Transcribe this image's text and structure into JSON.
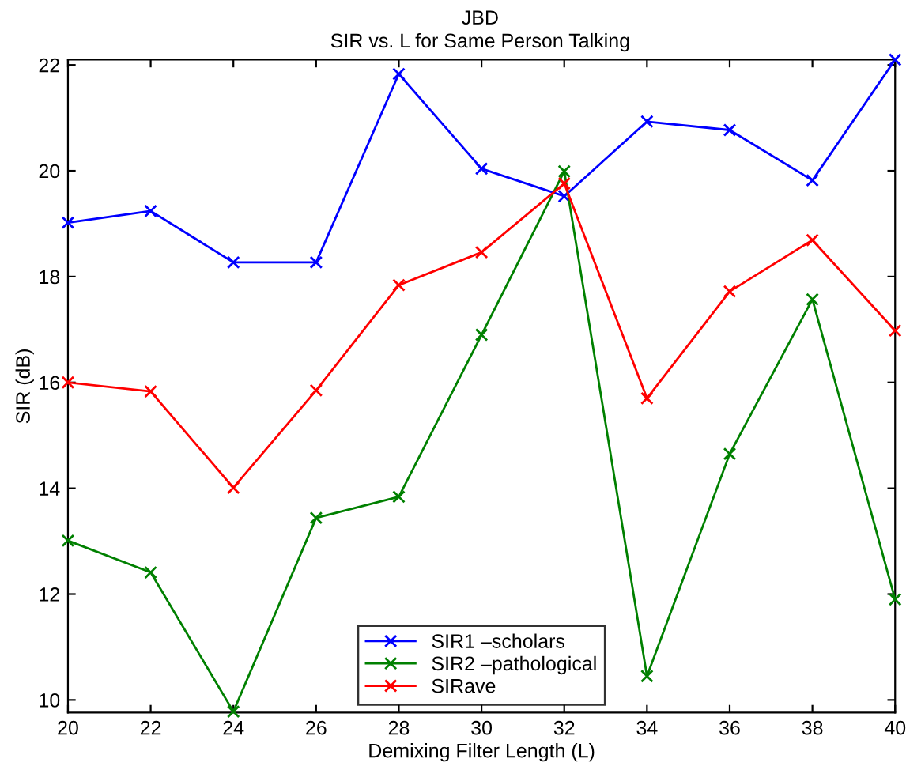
{
  "chart_data": {
    "type": "line",
    "title": "JBD",
    "subtitle": "SIR vs. L for Same Person Talking",
    "xlabel": "Demixing Filter Length (L)",
    "ylabel": "SIR (dB)",
    "x": [
      20,
      22,
      24,
      26,
      28,
      30,
      32,
      34,
      36,
      38,
      40
    ],
    "series": [
      {
        "name": "SIR1 –scholars",
        "color": "#0000ff",
        "values": [
          19.02,
          19.24,
          18.27,
          18.27,
          21.83,
          20.04,
          19.52,
          20.93,
          20.77,
          19.82,
          22.1
        ]
      },
      {
        "name": "SIR2 –pathological",
        "color": "#008000",
        "values": [
          13.01,
          12.41,
          9.78,
          13.44,
          13.84,
          16.9,
          19.99,
          10.45,
          14.65,
          17.57,
          11.9
        ]
      },
      {
        "name": "SIRave",
        "color": "#ff0000",
        "values": [
          16.0,
          15.83,
          14.01,
          15.85,
          17.84,
          18.46,
          19.76,
          15.7,
          17.72,
          18.69,
          16.98
        ]
      }
    ],
    "xlim": [
      20,
      40
    ],
    "xticks": [
      20,
      22,
      24,
      26,
      28,
      30,
      32,
      34,
      36,
      38,
      40
    ],
    "ylim": [
      9.76,
      22.1
    ],
    "yticks": [
      10,
      12,
      14,
      16,
      18,
      20,
      22
    ],
    "grid": false,
    "legend": "bottom",
    "marker": "cross",
    "line_style": "solid"
  }
}
